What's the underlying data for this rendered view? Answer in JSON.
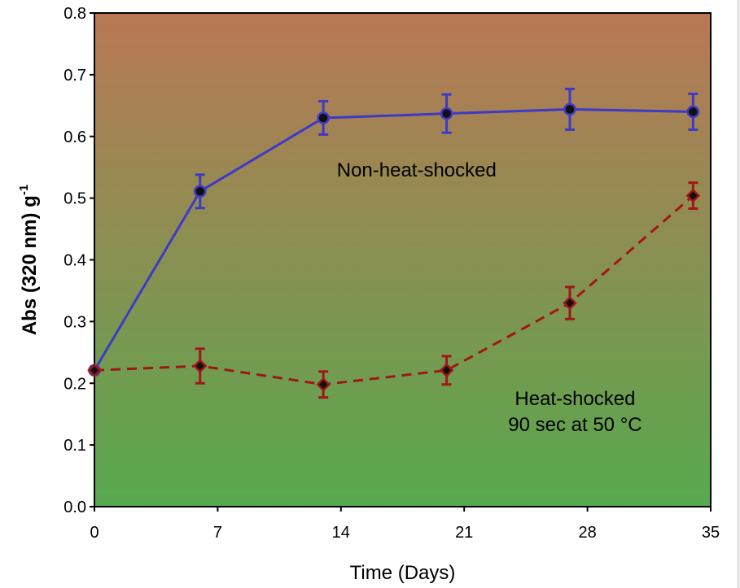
{
  "chart_data": {
    "type": "line",
    "title": "",
    "xlabel": "Time (Days)",
    "ylabel": {
      "base": "Abs (320 nm) g",
      "superscript": "-1"
    },
    "xlim": [
      0,
      35
    ],
    "ylim": [
      0,
      0.8
    ],
    "xticks": [
      0,
      7,
      14,
      21,
      28,
      35
    ],
    "xtick_labels": [
      "0",
      "7",
      "14",
      "21",
      "28",
      "35"
    ],
    "yticks": [
      0,
      0.1,
      0.2,
      0.3,
      0.4,
      0.5,
      0.6,
      0.7,
      0.8
    ],
    "ytick_labels": [
      "0.0",
      "0.1",
      "0.2",
      "0.3",
      "0.4",
      "0.5",
      "0.6",
      "0.7",
      "0.8"
    ],
    "grid": false,
    "background_gradient": {
      "top": "#b97754",
      "bottom": "#57a94f"
    },
    "series": [
      {
        "marker": "circle",
        "line_style": "solid",
        "color": "#3d3ac8",
        "marker_color": "#111111",
        "x": [
          0,
          6,
          13,
          20,
          27,
          34
        ],
        "y": [
          0.221,
          0.511,
          0.63,
          0.637,
          0.644,
          0.64
        ],
        "yerr": [
          0,
          0.027,
          0.027,
          0.031,
          0.033,
          0.029
        ]
      },
      {
        "marker": "diamond",
        "line_style": "dashed",
        "color": "#a01717",
        "marker_color": "#111111",
        "x": [
          0,
          6,
          13,
          20,
          27,
          34
        ],
        "y": [
          0.221,
          0.228,
          0.198,
          0.221,
          0.33,
          0.504
        ],
        "yerr": [
          0,
          0.028,
          0.021,
          0.023,
          0.026,
          0.021
        ]
      }
    ],
    "annotations": [
      {
        "lines": [
          "Non-heat-shocked"
        ],
        "x": 18.3,
        "y": 0.535
      },
      {
        "lines": [
          "Heat-shocked",
          "90 sec at 50 °C"
        ],
        "x": 27.3,
        "y": 0.165
      }
    ]
  }
}
